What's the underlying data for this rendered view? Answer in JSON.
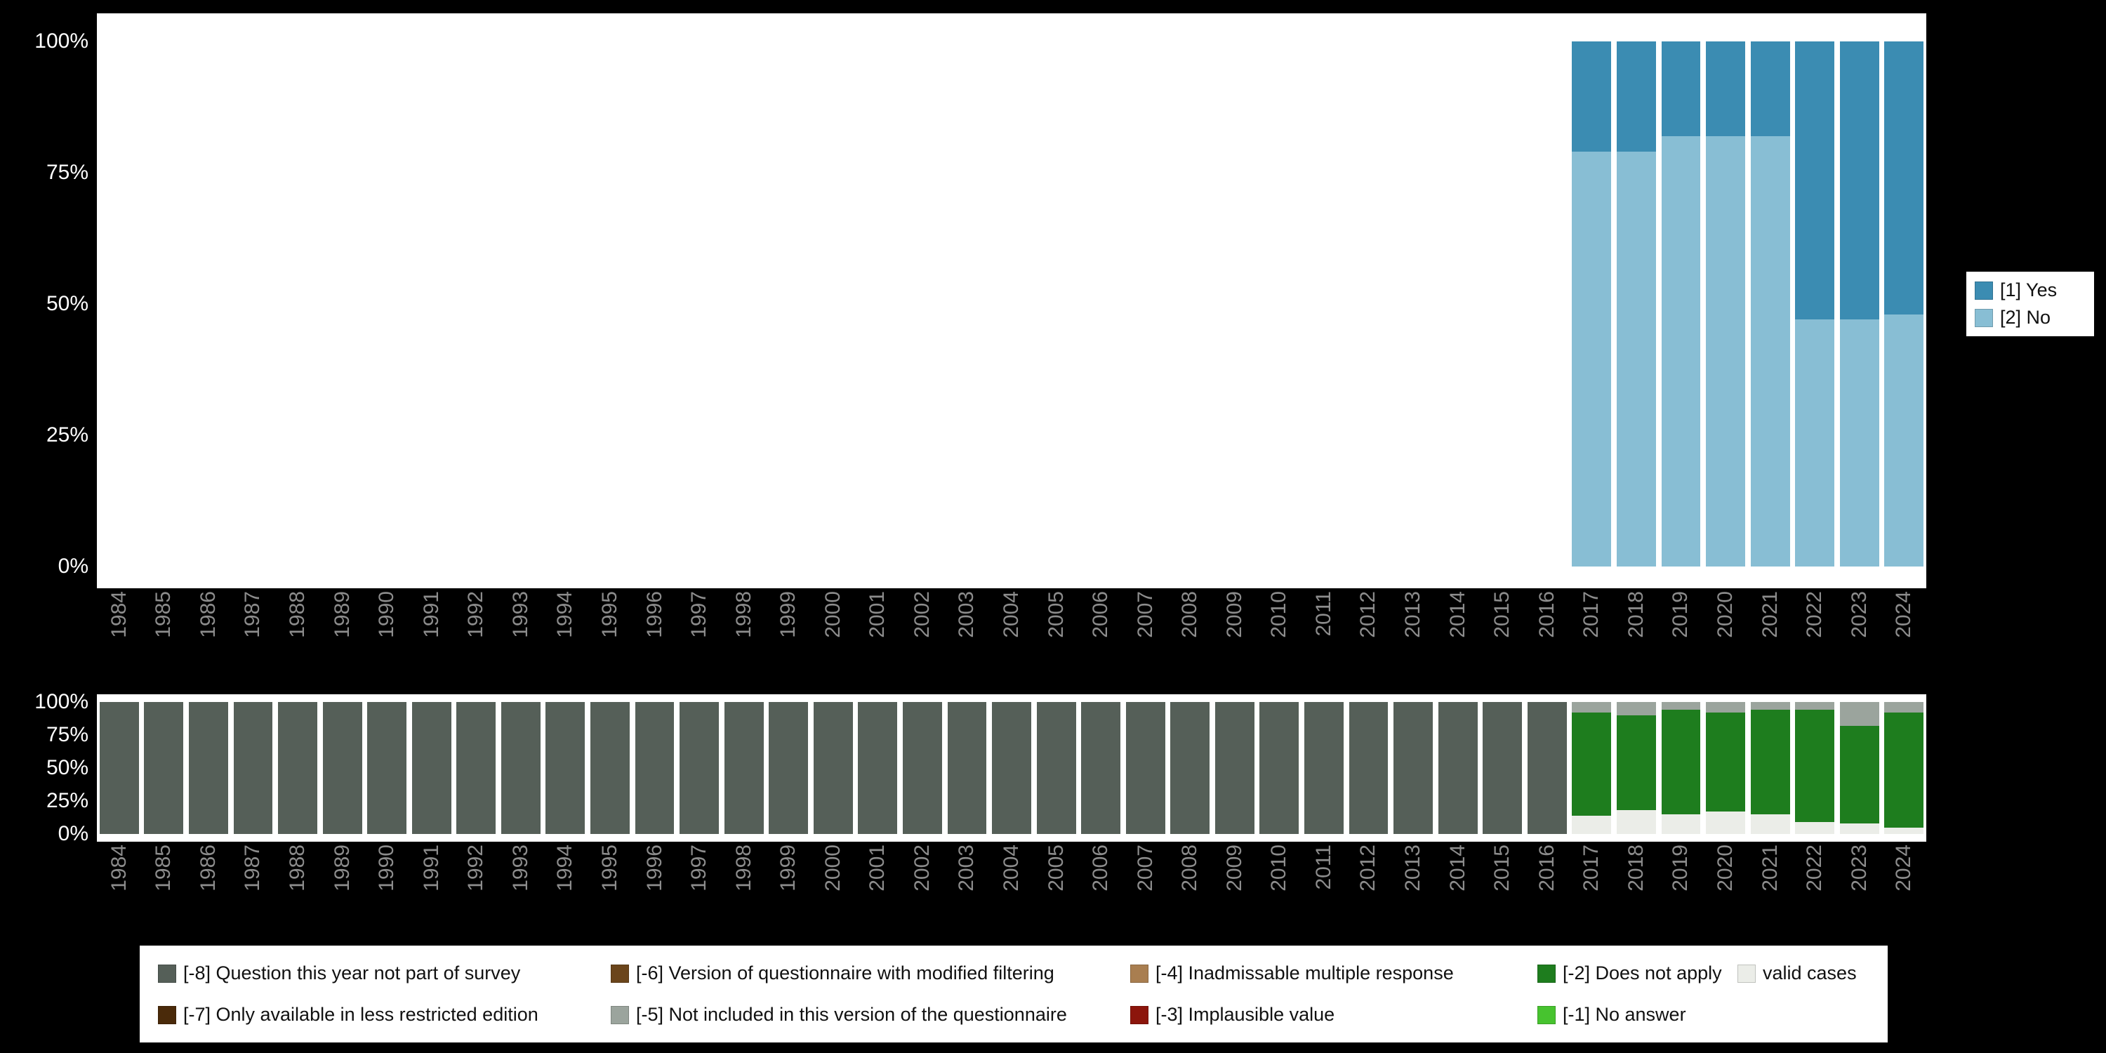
{
  "figure": {
    "background": "#000000",
    "panel_background": "#ffffff",
    "axis_text_color": "#ffffff",
    "year_text_color": "#8c8c8c"
  },
  "palette": {
    "yes": "#3b8cb2",
    "no": "#88bed4",
    "m8": "#555f58",
    "m7": "#4a2a0a",
    "m6": "#6b451b",
    "m5": "#9ba49d",
    "m4": "#a97e50",
    "m3": "#8c150c",
    "m2": "#1e7d1e",
    "m1": "#47c32f",
    "valid": "#ebede8"
  },
  "years": [
    "1984",
    "1985",
    "1986",
    "1987",
    "1988",
    "1989",
    "1990",
    "1991",
    "1992",
    "1993",
    "1994",
    "1995",
    "1996",
    "1997",
    "1998",
    "1999",
    "2000",
    "2001",
    "2002",
    "2003",
    "2004",
    "2005",
    "2006",
    "2007",
    "2008",
    "2009",
    "2010",
    "2011",
    "2012",
    "2013",
    "2014",
    "2015",
    "2016",
    "2017",
    "2018",
    "2019",
    "2020",
    "2021",
    "2022",
    "2023",
    "2024"
  ],
  "frequency_legend": {
    "items": [
      {
        "label": "[1] Yes",
        "color_key": "yes"
      },
      {
        "label": "[2] No",
        "color_key": "no"
      }
    ]
  },
  "missing_legend": {
    "items": [
      {
        "label": "[-8] Question this year not part of survey",
        "color_key": "m8"
      },
      {
        "label": "[-7] Only available in less restricted edition",
        "color_key": "m7"
      },
      {
        "label": "[-6] Version of questionnaire with modified filtering",
        "color_key": "m6"
      },
      {
        "label": "[-5] Not included in this version of the questionnaire",
        "color_key": "m5"
      },
      {
        "label": "[-4] Inadmissable multiple response",
        "color_key": "m4"
      },
      {
        "label": "[-3] Implausible value",
        "color_key": "m3"
      },
      {
        "label": "[-2] Does not apply",
        "color_key": "m2"
      },
      {
        "label": "[-1] No answer",
        "color_key": "m1"
      },
      {
        "label": "valid cases",
        "color_key": "valid"
      }
    ]
  },
  "chart_data": [
    {
      "type": "bar",
      "stacked": true,
      "title": "",
      "xlabel": "",
      "ylabel": "",
      "ylim": [
        0,
        100
      ],
      "grid": false,
      "legend_position": "right",
      "yticks": [
        "100%",
        "75%",
        "50%",
        "25%",
        "0%"
      ],
      "x": [
        "1984",
        "1985",
        "1986",
        "1987",
        "1988",
        "1989",
        "1990",
        "1991",
        "1992",
        "1993",
        "1994",
        "1995",
        "1996",
        "1997",
        "1998",
        "1999",
        "2000",
        "2001",
        "2002",
        "2003",
        "2004",
        "2005",
        "2006",
        "2007",
        "2008",
        "2009",
        "2010",
        "2011",
        "2012",
        "2013",
        "2014",
        "2015",
        "2016",
        "2017",
        "2018",
        "2019",
        "2020",
        "2021",
        "2022",
        "2023",
        "2024"
      ],
      "series": [
        {
          "name": "[1] Yes",
          "color_key": "yes",
          "values": [
            null,
            null,
            null,
            null,
            null,
            null,
            null,
            null,
            null,
            null,
            null,
            null,
            null,
            null,
            null,
            null,
            null,
            null,
            null,
            null,
            null,
            null,
            null,
            null,
            null,
            null,
            null,
            null,
            null,
            null,
            null,
            null,
            null,
            21,
            21,
            18,
            18,
            18,
            53,
            53,
            52
          ]
        },
        {
          "name": "[2] No",
          "color_key": "no",
          "values": [
            null,
            null,
            null,
            null,
            null,
            null,
            null,
            null,
            null,
            null,
            null,
            null,
            null,
            null,
            null,
            null,
            null,
            null,
            null,
            null,
            null,
            null,
            null,
            null,
            null,
            null,
            null,
            null,
            null,
            null,
            null,
            null,
            null,
            79,
            79,
            82,
            82,
            82,
            47,
            47,
            48
          ]
        }
      ]
    },
    {
      "type": "bar",
      "stacked": true,
      "title": "",
      "xlabel": "",
      "ylabel": "",
      "ylim": [
        0,
        100
      ],
      "grid": false,
      "legend_position": "bottom",
      "yticks": [
        "100%",
        "75%",
        "50%",
        "25%",
        "0%"
      ],
      "x": [
        "1984",
        "1985",
        "1986",
        "1987",
        "1988",
        "1989",
        "1990",
        "1991",
        "1992",
        "1993",
        "1994",
        "1995",
        "1996",
        "1997",
        "1998",
        "1999",
        "2000",
        "2001",
        "2002",
        "2003",
        "2004",
        "2005",
        "2006",
        "2007",
        "2008",
        "2009",
        "2010",
        "2011",
        "2012",
        "2013",
        "2014",
        "2015",
        "2016",
        "2017",
        "2018",
        "2019",
        "2020",
        "2021",
        "2022",
        "2023",
        "2024"
      ],
      "series": [
        {
          "name": "[-8] Question this year not part of survey",
          "color_key": "m8",
          "values": [
            100,
            100,
            100,
            100,
            100,
            100,
            100,
            100,
            100,
            100,
            100,
            100,
            100,
            100,
            100,
            100,
            100,
            100,
            100,
            100,
            100,
            100,
            100,
            100,
            100,
            100,
            100,
            100,
            100,
            100,
            100,
            100,
            100,
            null,
            null,
            null,
            null,
            null,
            null,
            null,
            null
          ]
        },
        {
          "name": "[-5] Not included in this version of the questionnaire",
          "color_key": "m5",
          "values": [
            null,
            null,
            null,
            null,
            null,
            null,
            null,
            null,
            null,
            null,
            null,
            null,
            null,
            null,
            null,
            null,
            null,
            null,
            null,
            null,
            null,
            null,
            null,
            null,
            null,
            null,
            null,
            null,
            null,
            null,
            null,
            null,
            null,
            8,
            10,
            6,
            8,
            6,
            6,
            18,
            8
          ]
        },
        {
          "name": "[-2] Does not apply",
          "color_key": "m2",
          "values": [
            null,
            null,
            null,
            null,
            null,
            null,
            null,
            null,
            null,
            null,
            null,
            null,
            null,
            null,
            null,
            null,
            null,
            null,
            null,
            null,
            null,
            null,
            null,
            null,
            null,
            null,
            null,
            null,
            null,
            null,
            null,
            null,
            null,
            78,
            72,
            79,
            75,
            79,
            85,
            74,
            87
          ]
        },
        {
          "name": "valid cases",
          "color_key": "valid",
          "values": [
            null,
            null,
            null,
            null,
            null,
            null,
            null,
            null,
            null,
            null,
            null,
            null,
            null,
            null,
            null,
            null,
            null,
            null,
            null,
            null,
            null,
            null,
            null,
            null,
            null,
            null,
            null,
            null,
            null,
            null,
            null,
            null,
            null,
            14,
            18,
            15,
            17,
            15,
            9,
            8,
            5
          ]
        }
      ]
    }
  ]
}
